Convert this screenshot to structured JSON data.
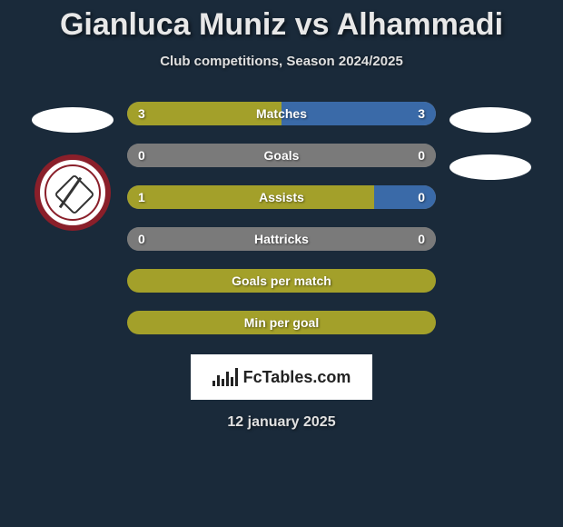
{
  "title": "Gianluca Muniz vs Alhammadi",
  "subtitle": "Club competitions, Season 2024/2025",
  "footer_date": "12 january 2025",
  "logo_text": "FcTables.com",
  "colors": {
    "background": "#1a2a3a",
    "bar_olive": "#a3a02a",
    "bar_blue": "#3a6aa8",
    "bar_neutral": "#7a7a7a"
  },
  "stats": [
    {
      "label": "Matches",
      "leftVal": "3",
      "rightVal": "3",
      "leftPct": 50,
      "rightPct": 50,
      "leftColor": "#a3a02a",
      "rightColor": "#3a6aa8"
    },
    {
      "label": "Goals",
      "leftVal": "0",
      "rightVal": "0",
      "leftPct": 50,
      "rightPct": 50,
      "leftColor": "#7a7a7a",
      "rightColor": "#7a7a7a"
    },
    {
      "label": "Assists",
      "leftVal": "1",
      "rightVal": "0",
      "leftPct": 80,
      "rightPct": 20,
      "leftColor": "#a3a02a",
      "rightColor": "#3a6aa8"
    },
    {
      "label": "Hattricks",
      "leftVal": "0",
      "rightVal": "0",
      "leftPct": 50,
      "rightPct": 50,
      "leftColor": "#7a7a7a",
      "rightColor": "#7a7a7a"
    }
  ],
  "full_bars": [
    {
      "label": "Goals per match",
      "color": "#a3a02a"
    },
    {
      "label": "Min per goal",
      "color": "#a3a02a"
    }
  ]
}
